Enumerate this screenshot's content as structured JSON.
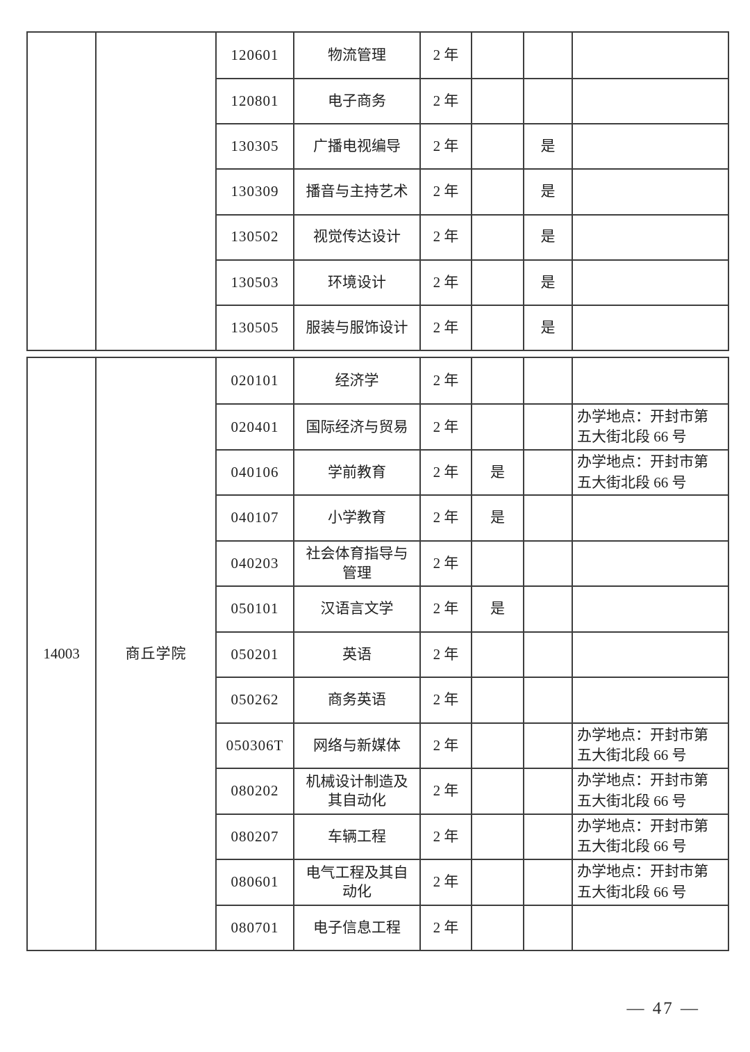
{
  "footer": {
    "page_number": "— 47 —"
  },
  "blocks": [
    {
      "school_code": "",
      "school_name": "",
      "rows": [
        {
          "code": "120601",
          "name": "物流管理",
          "duration": "2 年",
          "flag1": "",
          "flag2": "",
          "note": ""
        },
        {
          "code": "120801",
          "name": "电子商务",
          "duration": "2 年",
          "flag1": "",
          "flag2": "",
          "note": ""
        },
        {
          "code": "130305",
          "name": "广播电视编导",
          "duration": "2 年",
          "flag1": "",
          "flag2": "是",
          "note": ""
        },
        {
          "code": "130309",
          "name": "播音与主持艺术",
          "duration": "2 年",
          "flag1": "",
          "flag2": "是",
          "note": ""
        },
        {
          "code": "130502",
          "name": "视觉传达设计",
          "duration": "2 年",
          "flag1": "",
          "flag2": "是",
          "note": ""
        },
        {
          "code": "130503",
          "name": "环境设计",
          "duration": "2 年",
          "flag1": "",
          "flag2": "是",
          "note": ""
        },
        {
          "code": "130505",
          "name": "服装与服饰设计",
          "duration": "2 年",
          "flag1": "",
          "flag2": "是",
          "note": ""
        }
      ]
    },
    {
      "school_code": "14003",
      "school_name": "商丘学院",
      "rows": [
        {
          "code": "020101",
          "name": "经济学",
          "duration": "2 年",
          "flag1": "",
          "flag2": "",
          "note": ""
        },
        {
          "code": "020401",
          "name": "国际经济与贸易",
          "duration": "2 年",
          "flag1": "",
          "flag2": "",
          "note": "办学地点：开封市第五大街北段 66 号"
        },
        {
          "code": "040106",
          "name": "学前教育",
          "duration": "2 年",
          "flag1": "是",
          "flag2": "",
          "note": "办学地点：开封市第五大街北段 66 号"
        },
        {
          "code": "040107",
          "name": "小学教育",
          "duration": "2 年",
          "flag1": "是",
          "flag2": "",
          "note": ""
        },
        {
          "code": "040203",
          "name": "社会体育指导与管理",
          "duration": "2 年",
          "flag1": "",
          "flag2": "",
          "note": ""
        },
        {
          "code": "050101",
          "name": "汉语言文学",
          "duration": "2 年",
          "flag1": "是",
          "flag2": "",
          "note": ""
        },
        {
          "code": "050201",
          "name": "英语",
          "duration": "2 年",
          "flag1": "",
          "flag2": "",
          "note": ""
        },
        {
          "code": "050262",
          "name": "商务英语",
          "duration": "2 年",
          "flag1": "",
          "flag2": "",
          "note": ""
        },
        {
          "code": "050306T",
          "name": "网络与新媒体",
          "duration": "2 年",
          "flag1": "",
          "flag2": "",
          "note": "办学地点：开封市第五大街北段 66 号"
        },
        {
          "code": "080202",
          "name": "机械设计制造及其自动化",
          "duration": "2 年",
          "flag1": "",
          "flag2": "",
          "note": "办学地点：开封市第五大街北段 66 号"
        },
        {
          "code": "080207",
          "name": "车辆工程",
          "duration": "2 年",
          "flag1": "",
          "flag2": "",
          "note": "办学地点：开封市第五大街北段 66 号"
        },
        {
          "code": "080601",
          "name": "电气工程及其自动化",
          "duration": "2 年",
          "flag1": "",
          "flag2": "",
          "note": "办学地点：开封市第五大街北段 66 号"
        },
        {
          "code": "080701",
          "name": "电子信息工程",
          "duration": "2 年",
          "flag1": "",
          "flag2": "",
          "note": ""
        }
      ]
    }
  ]
}
